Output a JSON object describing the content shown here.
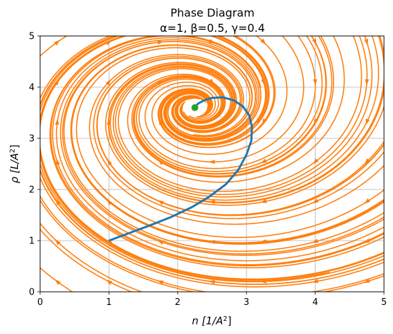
{
  "chart_data": {
    "type": "line",
    "title_lines": [
      "Phase Diagram",
      "α=1, β=0.5, γ=0.4"
    ],
    "xlabel": {
      "main": "n [1/A",
      "sup": "2",
      "end": "]"
    },
    "ylabel": {
      "main": "ρ [L/A",
      "sup": "2",
      "end": "]"
    },
    "xlim": [
      0,
      5
    ],
    "ylim": [
      0,
      5
    ],
    "xticks": [
      "0",
      "1",
      "2",
      "3",
      "4",
      "5"
    ],
    "yticks": [
      "0",
      "1",
      "2",
      "3",
      "4",
      "5"
    ],
    "grid": true,
    "legend": "none",
    "streamlines": {
      "color": "#ff7f0e",
      "description_kind": "vector-field streamplot spiraling toward fixed point",
      "field": {
        "center": [
          2.25,
          3.6
        ],
        "rotation": "clockwise"
      }
    },
    "trajectory": {
      "color": "#1f77b4",
      "x": [
        1.0,
        1.3,
        1.6,
        1.9,
        2.2,
        2.45,
        2.7,
        2.88,
        3.0,
        3.07,
        3.08,
        3.04,
        2.95,
        2.82,
        2.66,
        2.5,
        2.38,
        2.3,
        2.26,
        2.25
      ],
      "y": [
        1.0,
        1.15,
        1.3,
        1.46,
        1.65,
        1.85,
        2.1,
        2.38,
        2.68,
        2.95,
        3.22,
        3.45,
        3.62,
        3.74,
        3.8,
        3.79,
        3.74,
        3.68,
        3.63,
        3.6
      ]
    },
    "fixed_point": {
      "color": "#2ca02c",
      "x": 2.25,
      "y": 3.6
    }
  }
}
